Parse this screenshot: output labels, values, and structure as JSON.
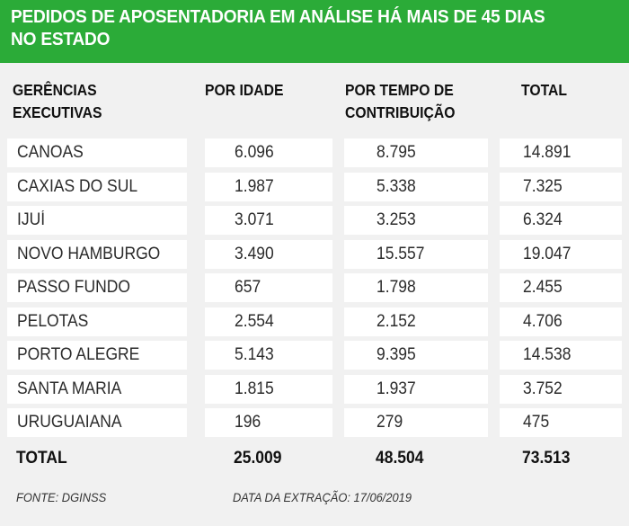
{
  "title": "PEDIDOS DE APOSENTADORIA EM ANÁLISE HÁ MAIS DE 45 DIAS NO ESTADO",
  "columns": [
    "GERÊNCIAS\nEXECUTIVAS",
    "POR IDADE",
    "POR TEMPO DE\nCONTRIBUIÇÃO",
    "TOTAL"
  ],
  "rows": [
    [
      "CANOAS",
      "6.096",
      "8.795",
      "14.891"
    ],
    [
      "CAXIAS DO SUL",
      "1.987",
      "5.338",
      "7.325"
    ],
    [
      "IJUÍ",
      "3.071",
      "3.253",
      "6.324"
    ],
    [
      "NOVO HAMBURGO",
      "3.490",
      "15.557",
      "19.047"
    ],
    [
      "PASSO FUNDO",
      "657",
      "1.798",
      "2.455"
    ],
    [
      "PELOTAS",
      "2.554",
      "2.152",
      "4.706"
    ],
    [
      "PORTO ALEGRE",
      "5.143",
      "9.395",
      "14.538"
    ],
    [
      "SANTA MARIA",
      "1.815",
      "1.937",
      "3.752"
    ],
    [
      "URUGUAIANA",
      "196",
      "279",
      "475"
    ]
  ],
  "total": [
    "TOTAL",
    "25.009",
    "48.504",
    "73.513"
  ],
  "footer": {
    "source": "FONTE: DGINSS",
    "extraction_date": "DATA DA EXTRAÇÃO: 17/06/2019"
  },
  "colors": {
    "header_green": "#2bab38",
    "background": "#f1f1f1",
    "cell": "#ffffff"
  }
}
